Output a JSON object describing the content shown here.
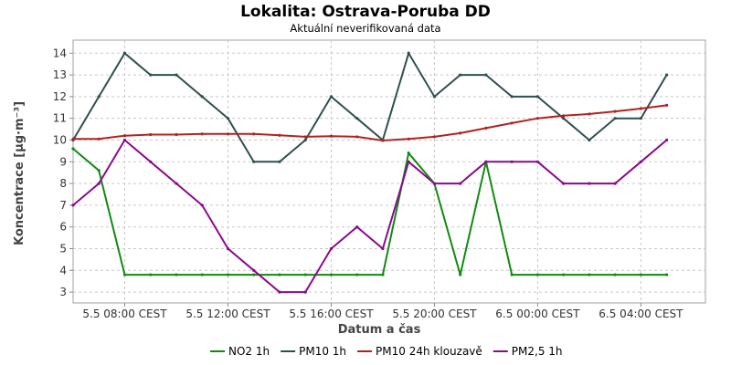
{
  "chart_data": {
    "type": "line",
    "title": "Lokalita: Ostrava-Poruba DD",
    "subtitle": "Aktuální neverifikovaná data",
    "xlabel": "Datum a čas",
    "ylabel": "Koncentrace [µg·m⁻³]",
    "ylim": [
      2.5,
      14.6
    ],
    "yticks": [
      3,
      4,
      5,
      6,
      7,
      8,
      9,
      10,
      11,
      12,
      13,
      14
    ],
    "xlim": [
      0,
      24.5
    ],
    "xtick_positions": [
      2,
      6,
      10,
      14,
      18,
      22
    ],
    "xtick_labels": [
      "5.5 08:00 CEST",
      "5.5 12:00 CEST",
      "5.5 16:00 CEST",
      "5.5 20:00 CEST",
      "6.5 00:00 CEST",
      "6.5 04:00 CEST"
    ],
    "grid": true,
    "legend_position": "bottom",
    "x": [
      0,
      1,
      2,
      3,
      4,
      5,
      6,
      7,
      8,
      9,
      10,
      11,
      12,
      13,
      14,
      15,
      16,
      17,
      18,
      19,
      20,
      21,
      22,
      23
    ],
    "series": [
      {
        "name": "NO2 1h",
        "color": "#118a11",
        "values": [
          9.6,
          8.6,
          3.8,
          3.8,
          3.8,
          3.8,
          3.8,
          3.8,
          3.8,
          3.8,
          3.8,
          3.8,
          3.8,
          9.4,
          8.0,
          3.8,
          9.0,
          3.8,
          3.8,
          3.8,
          3.8,
          3.8,
          3.8,
          3.8
        ]
      },
      {
        "name": "PM10 1h",
        "color": "#2f4f4f",
        "values": [
          10,
          12,
          14,
          13,
          13,
          12,
          11,
          9,
          9,
          10,
          12,
          11,
          10,
          14,
          12,
          13,
          13,
          12,
          12,
          11,
          10,
          11,
          11,
          13
        ]
      },
      {
        "name": "PM10 24h klouzavě",
        "color": "#b22222",
        "values": [
          10.05,
          10.05,
          10.2,
          10.25,
          10.25,
          10.28,
          10.28,
          10.28,
          10.22,
          10.15,
          10.18,
          10.15,
          9.98,
          10.05,
          10.15,
          10.32,
          10.55,
          10.78,
          11.0,
          11.12,
          11.2,
          11.32,
          11.45,
          11.6
        ]
      },
      {
        "name": "PM2,5 1h",
        "color": "#8b0a8b",
        "values": [
          7,
          8,
          10,
          9,
          8,
          7,
          5,
          4,
          3,
          3,
          5,
          6,
          5,
          9,
          8,
          8,
          9,
          9,
          9,
          8,
          8,
          8,
          9,
          10
        ]
      }
    ]
  }
}
